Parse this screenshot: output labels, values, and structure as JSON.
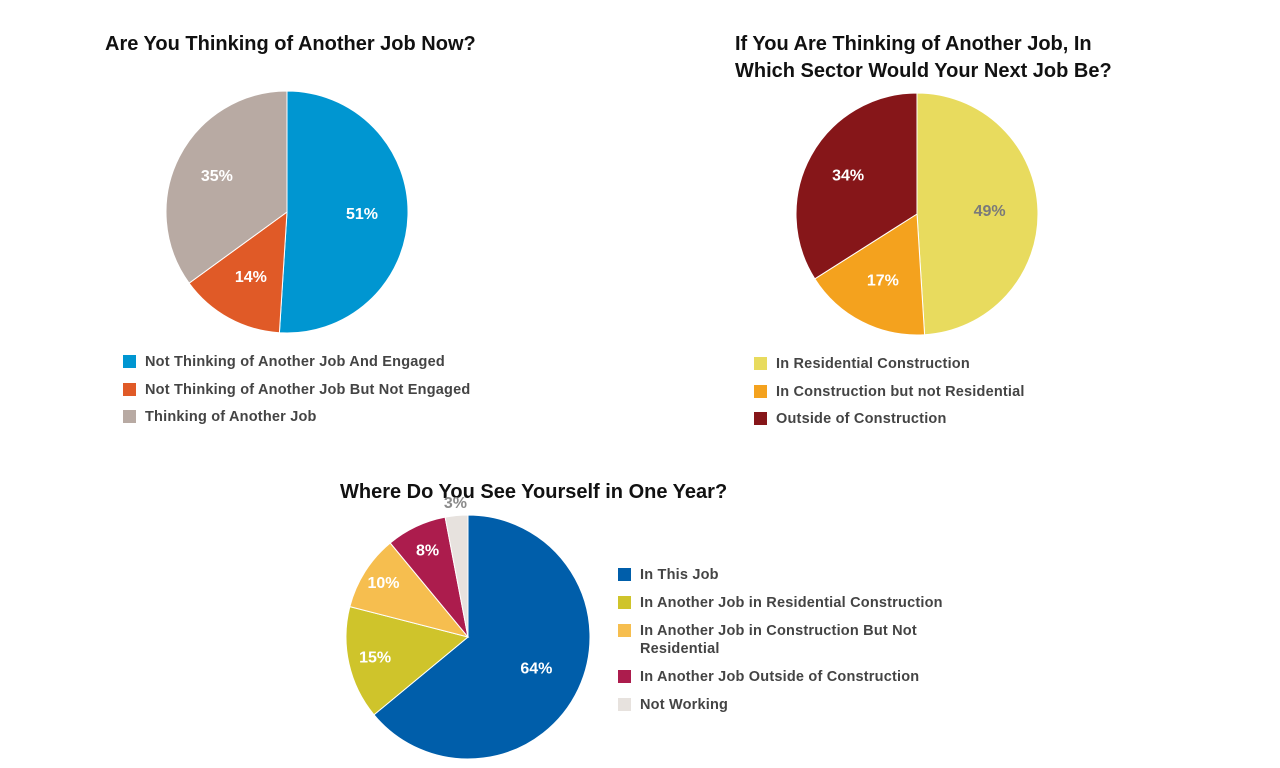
{
  "chart_data": [
    {
      "type": "pie",
      "title": "Are You Thinking of Another Job Now?",
      "legend_position": "bottom",
      "slices": [
        {
          "label": "Not Thinking of Another Job And Engaged",
          "value": 51,
          "display": "51%",
          "color": "#0096D1",
          "label_color": "#ffffff"
        },
        {
          "label": "Not Thinking of Another Job But Not Engaged",
          "value": 14,
          "display": "14%",
          "color": "#E05A27",
          "label_color": "#ffffff"
        },
        {
          "label": "Thinking of Another Job",
          "value": 35,
          "display": "35%",
          "color": "#B8AAA3",
          "label_color": "#ffffff"
        }
      ]
    },
    {
      "type": "pie",
      "title": "If You Are Thinking of Another Job, In Which Sector Would Your Next Job Be?",
      "legend_position": "bottom",
      "slices": [
        {
          "label": "In Residential Construction",
          "value": 49,
          "display": "49%",
          "color": "#E8DB5E",
          "label_color": "#7a7a7a"
        },
        {
          "label": "In Construction but not Residential",
          "value": 17,
          "display": "17%",
          "color": "#F4A21E",
          "label_color": "#ffffff"
        },
        {
          "label": "Outside of Construction",
          "value": 34,
          "display": "34%",
          "color": "#861619",
          "label_color": "#ffffff"
        }
      ]
    },
    {
      "type": "pie",
      "title": "Where Do You See Yourself in One Year?",
      "legend_position": "right",
      "slices": [
        {
          "label": "In This Job",
          "value": 64,
          "display": "64%",
          "color": "#005EAA",
          "label_color": "#ffffff"
        },
        {
          "label": "In Another Job in Residential Construction",
          "value": 15,
          "display": "15%",
          "color": "#CFC42B",
          "label_color": "#ffffff"
        },
        {
          "label": "In Another Job in Construction But Not Residential",
          "value": 10,
          "display": "10%",
          "color": "#F6BE4F",
          "label_color": "#ffffff"
        },
        {
          "label": "In Another Job Outside of Construction",
          "value": 8,
          "display": "8%",
          "color": "#AC1C4D",
          "label_color": "#ffffff"
        },
        {
          "label": "Not Working",
          "value": 3,
          "display": "3%",
          "color": "#E7E2DE",
          "label_color": "#8a8a8a",
          "label_outside": true
        }
      ]
    }
  ]
}
